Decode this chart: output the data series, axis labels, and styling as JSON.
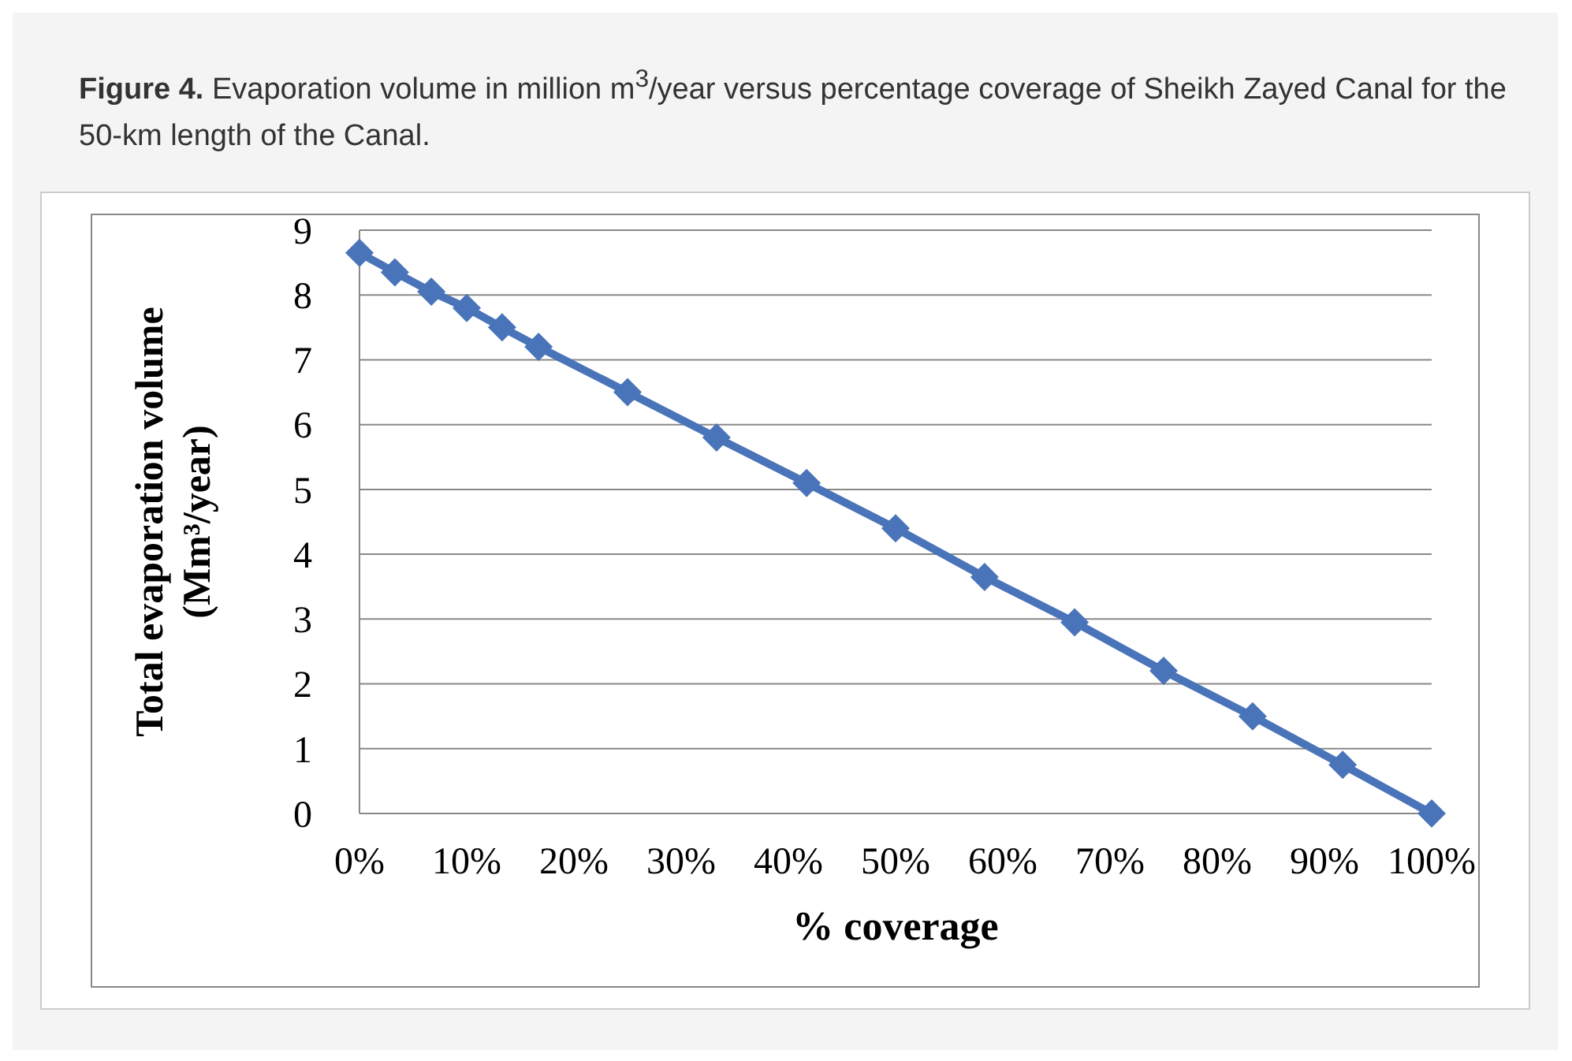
{
  "chart_data": {
    "type": "line",
    "title": "Figure 4. Evaporation volume in million m$^{3}$/year versus percentage coverage of Sheikh Zayed Canal for the 50-km length of the Canal.",
    "xlabel": "% coverage",
    "ylabel": "Total evaporation volume\n(Mm³/year)",
    "x": [
      0,
      3.3,
      6.7,
      10,
      13.3,
      16.7,
      25,
      33.3,
      41.7,
      50,
      58.3,
      66.7,
      75,
      83.3,
      91.7,
      100
    ],
    "series": [
      {
        "color": "#4a74b9",
        "values": [
          8.65,
          8.35,
          8.05,
          7.8,
          7.5,
          7.2,
          6.5,
          5.8,
          5.1,
          4.4,
          3.65,
          2.95,
          2.2,
          1.5,
          0.75,
          0
        ]
      }
    ],
    "xlim": [
      0,
      100
    ],
    "ylim": [
      0,
      9
    ],
    "xticks": [
      {
        "value": 0,
        "label": "0%"
      },
      {
        "value": 10,
        "label": "10%"
      },
      {
        "value": 20,
        "label": "20%"
      },
      {
        "value": 30,
        "label": "30%"
      },
      {
        "value": 40,
        "label": "40%"
      },
      {
        "value": 50,
        "label": "50%"
      },
      {
        "value": 60,
        "label": "60%"
      },
      {
        "value": 70,
        "label": "70%"
      },
      {
        "value": 80,
        "label": "80%"
      },
      {
        "value": 90,
        "label": "90%"
      },
      {
        "value": 100,
        "label": "100%"
      }
    ],
    "yticks": [
      0,
      1,
      2,
      3,
      4,
      5,
      6,
      7,
      8,
      9
    ],
    "grid": "y",
    "marker": "diamond",
    "line_style": "solid"
  }
}
